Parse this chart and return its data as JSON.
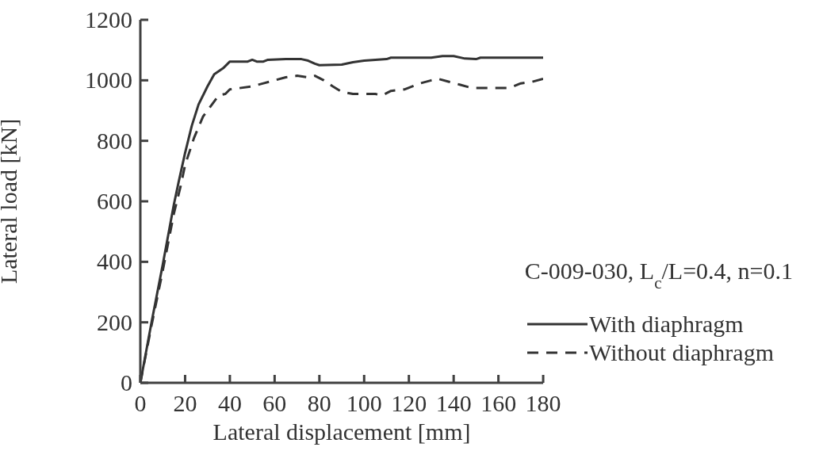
{
  "chart_data": {
    "type": "line",
    "xlabel": "Lateral displacement [mm]",
    "ylabel": "Lateral load [kN]",
    "xlim": [
      0,
      180
    ],
    "xticks": [
      0,
      20,
      40,
      60,
      80,
      100,
      120,
      140,
      160,
      180
    ],
    "ylim": [
      0,
      1200
    ],
    "yticks": [
      0,
      200,
      400,
      600,
      800,
      1000,
      1200
    ],
    "grid": false,
    "legend": "bottom right",
    "marker": "none",
    "annotations": [
      "C-009-030, L$_{c}$/L=0.4, n=0.1"
    ],
    "series": [
      {
        "name": "With diaphragm",
        "color": "#333333",
        "line_style": "solid",
        "x": [
          0,
          5,
          10,
          15,
          17,
          20,
          23,
          26,
          30,
          33,
          37,
          40,
          48,
          50,
          52,
          55,
          57,
          65,
          72,
          75,
          78,
          80,
          90,
          95,
          100,
          110,
          112,
          120,
          130,
          135,
          140,
          145,
          150,
          152,
          180
        ],
        "values": [
          0,
          200,
          390,
          590,
          660,
          760,
          850,
          920,
          980,
          1020,
          1040,
          1062,
          1062,
          1068,
          1062,
          1062,
          1068,
          1070,
          1070,
          1065,
          1055,
          1050,
          1052,
          1060,
          1065,
          1070,
          1075,
          1075,
          1075,
          1080,
          1080,
          1072,
          1070,
          1075,
          1075
        ]
      },
      {
        "name": "Without diaphragm",
        "color": "#333333",
        "line_style": "dashed",
        "x": [
          0,
          5,
          10,
          15,
          18,
          20,
          24,
          28,
          32,
          35,
          38,
          40,
          45,
          50,
          55,
          60,
          65,
          70,
          75,
          78,
          82,
          86,
          90,
          95,
          100,
          105,
          108,
          112,
          118,
          125,
          130,
          133,
          138,
          143,
          148,
          155,
          165,
          170,
          175,
          180
        ],
        "values": [
          0,
          190,
          370,
          560,
          650,
          720,
          810,
          880,
          920,
          950,
          955,
          970,
          975,
          980,
          990,
          1000,
          1010,
          1015,
          1010,
          1015,
          1000,
          980,
          962,
          955,
          955,
          955,
          950,
          965,
          970,
          990,
          1000,
          1005,
          995,
          985,
          975,
          975,
          975,
          990,
          995,
          1005
        ]
      }
    ]
  }
}
